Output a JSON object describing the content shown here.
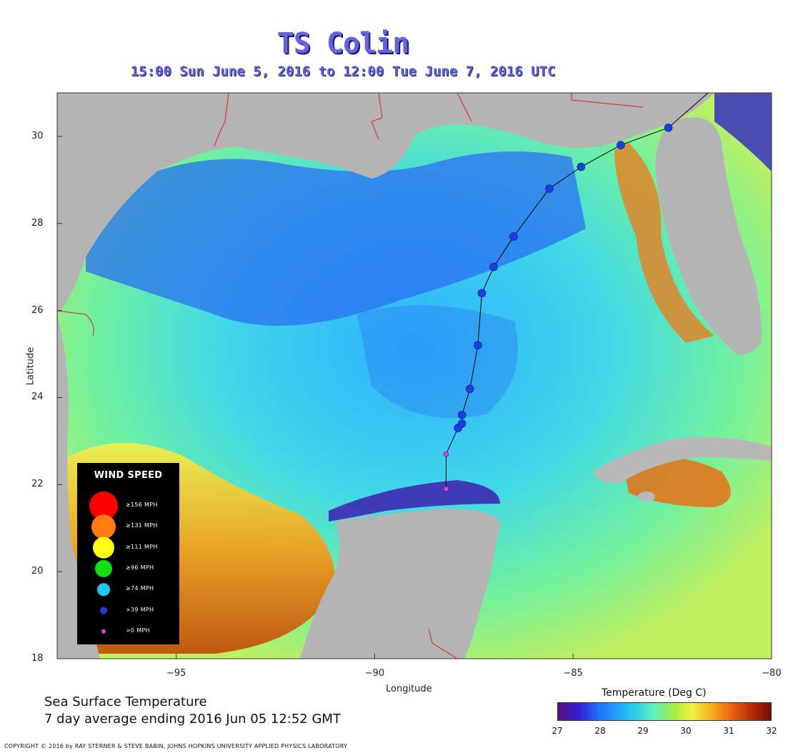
{
  "title": "TS Colin",
  "subtitle": "15:00 Sun June  5, 2016 to 12:00 Tue June  7, 2016  UTC",
  "axes": {
    "xlabel": "Longitude",
    "ylabel": "Latitude",
    "xticks": [
      "−95",
      "−90",
      "−85",
      "−80"
    ],
    "yticks": [
      "30",
      "28",
      "26",
      "24",
      "22",
      "20",
      "18"
    ],
    "xlim": [
      -98,
      -80
    ],
    "ylim": [
      18,
      31
    ]
  },
  "legend": {
    "title": "WIND SPEED",
    "items": [
      {
        "label": "≥156 MPH",
        "color": "#ff0000"
      },
      {
        "label": "≥131 MPH",
        "color": "#ff7a10"
      },
      {
        "label": "≥111 MPH",
        "color": "#ffff10"
      },
      {
        "label": "≥96 MPH",
        "color": "#10e010"
      },
      {
        "label": "≥74 MPH",
        "color": "#20c8f0"
      },
      {
        "label": ">39 MPH",
        "color": "#1a3ee0"
      },
      {
        "label": ">0 MPH",
        "color": "#e040e0"
      }
    ]
  },
  "colorbar": {
    "title": "Temperature (Deg C)",
    "ticks": [
      "27",
      "28",
      "29",
      "30",
      "31",
      "32"
    ],
    "range": [
      27,
      32
    ]
  },
  "caption": {
    "line1": "Sea Surface Temperature",
    "line2": "7 day average ending 2016 Jun 05 12:52 GMT"
  },
  "copyright": "COPYRIGHT © 2016 by RAY STERNER & STEVE BABIN, JOHNS HOPKINS UNIVERSITY APPLIED PHYSICS LABORATORY",
  "track": [
    {
      "lon": -88.2,
      "lat": 21.9,
      "cat": ">0 MPH"
    },
    {
      "lon": -88.2,
      "lat": 22.7,
      "cat": ">0 MPH"
    },
    {
      "lon": -87.9,
      "lat": 23.3,
      "cat": ">39 MPH"
    },
    {
      "lon": -87.8,
      "lat": 23.4,
      "cat": ">39 MPH"
    },
    {
      "lon": -87.8,
      "lat": 23.6,
      "cat": ">39 MPH"
    },
    {
      "lon": -87.6,
      "lat": 24.2,
      "cat": ">39 MPH"
    },
    {
      "lon": -87.4,
      "lat": 25.2,
      "cat": ">39 MPH"
    },
    {
      "lon": -87.3,
      "lat": 26.4,
      "cat": ">39 MPH"
    },
    {
      "lon": -87.0,
      "lat": 27.0,
      "cat": ">39 MPH"
    },
    {
      "lon": -86.5,
      "lat": 27.7,
      "cat": ">39 MPH"
    },
    {
      "lon": -85.6,
      "lat": 28.8,
      "cat": ">39 MPH"
    },
    {
      "lon": -84.8,
      "lat": 29.3,
      "cat": ">39 MPH"
    },
    {
      "lon": -83.8,
      "lat": 29.8,
      "cat": ">39 MPH"
    },
    {
      "lon": -82.6,
      "lat": 30.2,
      "cat": ">39 MPH"
    },
    {
      "lon": -81.6,
      "lat": 31.0,
      "cat": ">39 MPH"
    }
  ]
}
